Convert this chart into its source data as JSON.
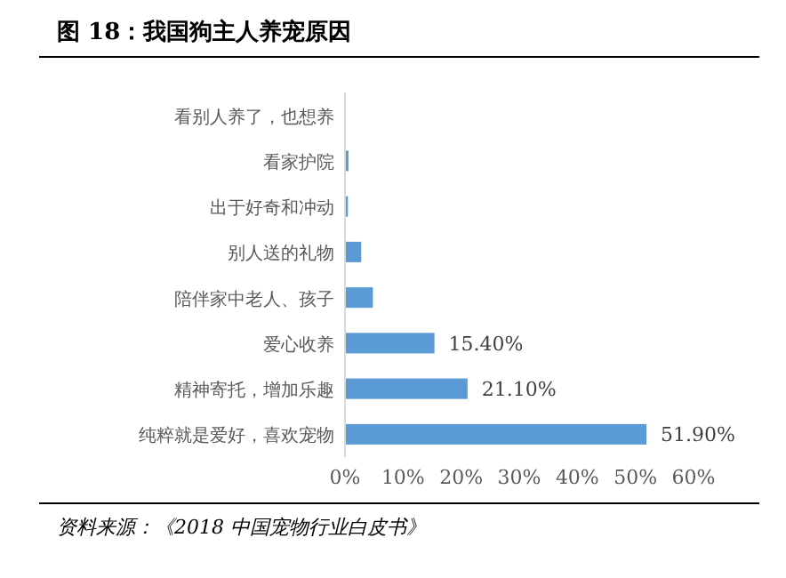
{
  "chart_data": {
    "type": "bar",
    "orientation": "horizontal",
    "title": "图 18：我国狗主人养宠原因",
    "categories": [
      "看别人养了，也想养",
      "看家护院",
      "出于好奇和冲动",
      "别人送的礼物",
      "陪伴家中老人、孩子",
      "爱心收养",
      "精神寄托，增加乐趣",
      "纯粹就是爱好，喜欢宠物"
    ],
    "values": [
      0,
      0.6,
      0.5,
      2.8,
      4.8,
      15.4,
      21.1,
      51.9
    ],
    "value_labels": [
      null,
      null,
      null,
      null,
      null,
      "15.40%",
      "21.10%",
      "51.90%"
    ],
    "color": "#5b9bd5",
    "xlim": [
      0,
      60
    ],
    "xticks": [
      {
        "value": 0,
        "label": "0%"
      },
      {
        "value": 10,
        "label": "10%"
      },
      {
        "value": 20,
        "label": "20%"
      },
      {
        "value": 30,
        "label": "30%"
      },
      {
        "value": 40,
        "label": "40%"
      },
      {
        "value": 50,
        "label": "50%"
      },
      {
        "value": 60,
        "label": "60%"
      }
    ],
    "annotations": [
      "资料来源：《2018 中国宠物行业白皮书》"
    ]
  }
}
